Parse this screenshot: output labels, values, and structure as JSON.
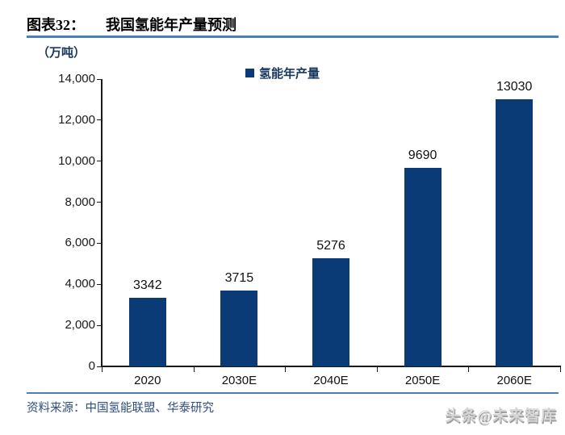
{
  "header": {
    "figure_label": "图表32：",
    "title": "我国氢能年产量预测"
  },
  "chart_data": {
    "type": "bar",
    "title": "我国氢能年产量预测",
    "unit_label": "（万吨）",
    "categories": [
      "2020",
      "2030E",
      "2040E",
      "2050E",
      "2060E"
    ],
    "series": [
      {
        "name": "氢能年产量",
        "values": [
          3342,
          3715,
          5276,
          9690,
          13030
        ]
      }
    ],
    "data_labels": [
      "3342",
      "3715",
      "5276",
      "9690",
      "13030"
    ],
    "ylim": [
      0,
      14000
    ],
    "ytick_step": 2000,
    "ytick_labels": [
      "0",
      "2,000",
      "4,000",
      "6,000",
      "8,000",
      "10,000",
      "12,000",
      "14,000"
    ],
    "grid": false,
    "legend_position": "top-center"
  },
  "colors": {
    "bar": "#0b3b77",
    "accent_rule": "#4a7ebc",
    "axis": "#1a1a1a",
    "navy_text": "#17375e"
  },
  "footer": {
    "source": "资料来源：中国氢能联盟、华泰研究",
    "watermark": "头条@未来智库"
  }
}
